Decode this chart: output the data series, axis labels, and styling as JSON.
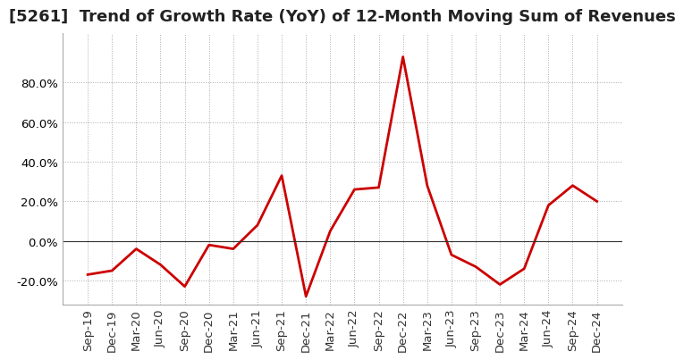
{
  "title": "[5261]  Trend of Growth Rate (YoY) of 12-Month Moving Sum of Revenues",
  "x_labels": [
    "Sep-19",
    "Dec-19",
    "Mar-20",
    "Jun-20",
    "Sep-20",
    "Dec-20",
    "Mar-21",
    "Jun-21",
    "Sep-21",
    "Dec-21",
    "Mar-22",
    "Jun-22",
    "Sep-22",
    "Dec-22",
    "Mar-23",
    "Jun-23",
    "Sep-23",
    "Dec-23",
    "Mar-24",
    "Jun-24",
    "Sep-24",
    "Dec-24"
  ],
  "y_values": [
    -0.17,
    -0.15,
    -0.04,
    -0.12,
    -0.23,
    -0.02,
    -0.04,
    0.08,
    0.33,
    -0.28,
    0.05,
    0.26,
    0.27,
    0.93,
    0.28,
    -0.07,
    -0.13,
    -0.22,
    -0.14,
    0.18,
    0.28,
    0.2
  ],
  "line_color": "#cc0000",
  "background_color": "#ffffff",
  "grid_color": "#aaaaaa",
  "ylim": [
    -0.32,
    1.05
  ],
  "yticks": [
    -0.2,
    0.0,
    0.2,
    0.4,
    0.6,
    0.8
  ],
  "title_fontsize": 13,
  "tick_fontsize": 9.5,
  "line_width": 2.0
}
